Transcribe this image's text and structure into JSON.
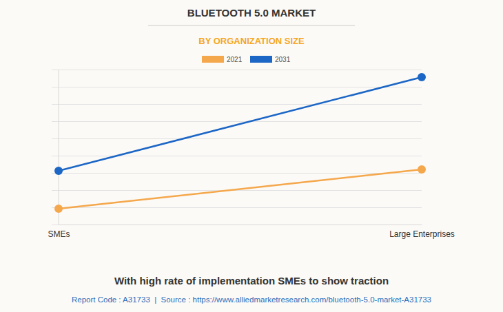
{
  "chart_data": {
    "type": "line",
    "title": "BLUETOOTH 5.0 MARKET",
    "subtitle": "BY ORGANIZATION SIZE",
    "caption": "With high rate of implementation SMEs to show traction",
    "source": "Report Code : A31733  |  Source : https://www.alliedmarketresearch.com/bluetooth-5.0-market-A31733",
    "categories": [
      "SMEs",
      "Large Enterprises"
    ],
    "series": [
      {
        "name": "2021",
        "color": "#f5a74b",
        "values": [
          0.92,
          3.2
        ]
      },
      {
        "name": "2031",
        "color": "#1c66c5",
        "values": [
          3.12,
          8.56
        ]
      }
    ],
    "ylim": [
      0,
      9
    ],
    "yticks": [
      0,
      1,
      2,
      3,
      4,
      5,
      6,
      7,
      8,
      9
    ],
    "grid": true,
    "legend": "top",
    "tick_labels": "x",
    "marker": "circle",
    "line_style": "solid"
  }
}
